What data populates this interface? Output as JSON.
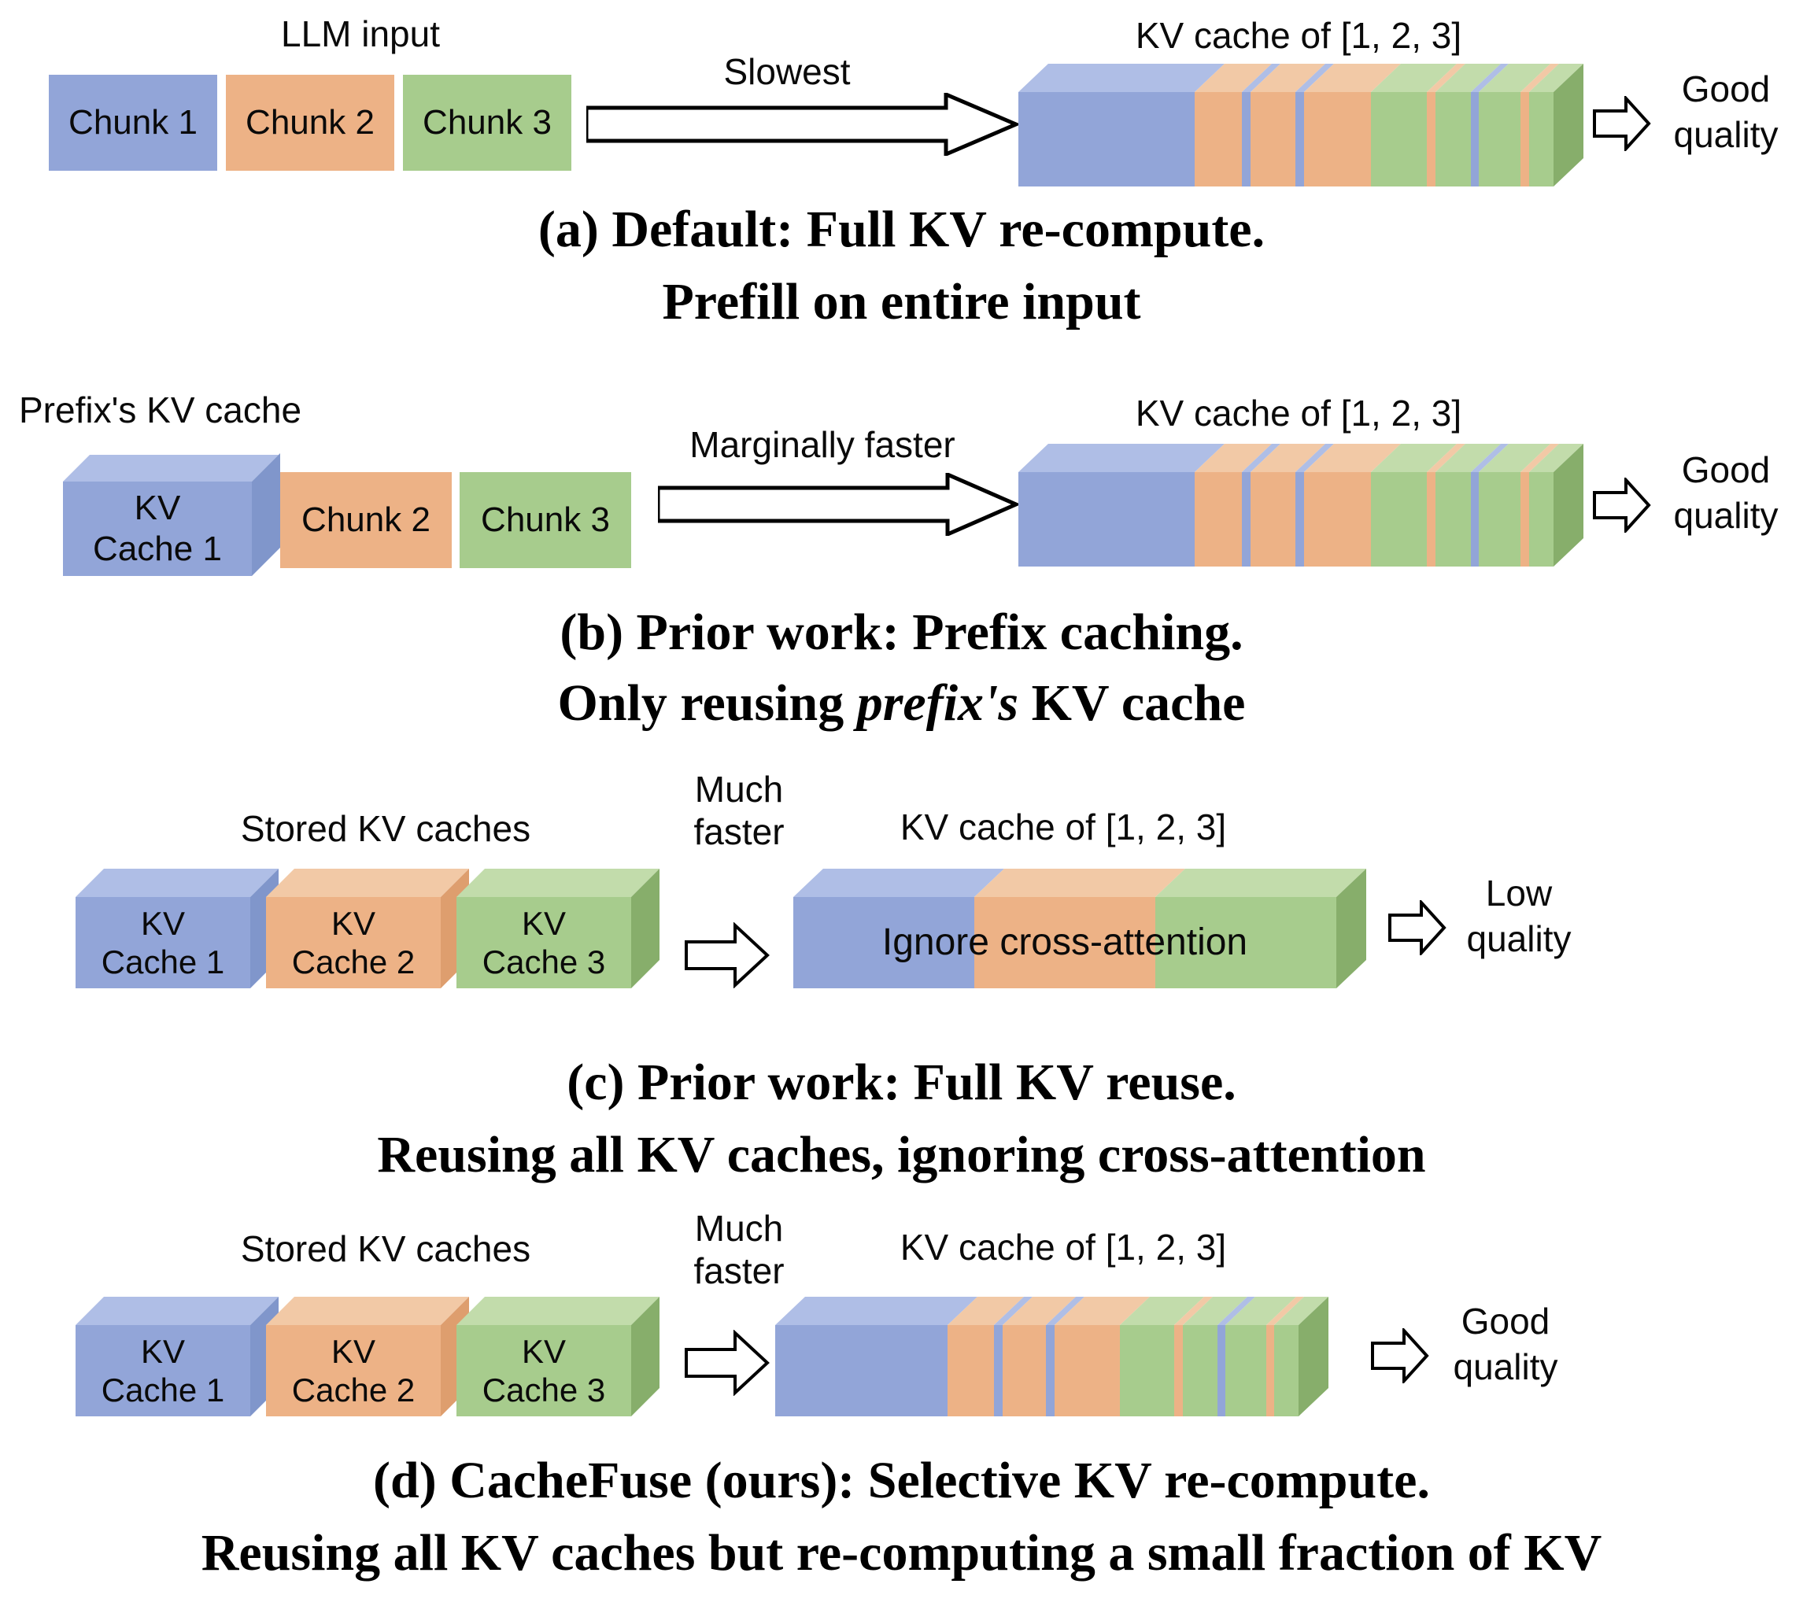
{
  "colors": {
    "blue": "#92A5D8",
    "blue_top": "#AFBEE6",
    "blue_side": "#8096CB",
    "orange": "#EDB286",
    "orange_top": "#F2C9A6",
    "orange_side": "#DE9E6E",
    "green": "#A7CC8D",
    "green_top": "#C2DCAB",
    "green_side": "#87AE6B"
  },
  "sec_a": {
    "top_label": "LLM input",
    "chunks": [
      {
        "label": "Chunk 1",
        "color": "blue"
      },
      {
        "label": "Chunk 2",
        "color": "orange"
      },
      {
        "label": "Chunk 3",
        "color": "green"
      }
    ],
    "arrow_label": "Slowest",
    "bar_label": "KV cache of [1, 2, 3]",
    "bar_segments": [
      {
        "color": "blue",
        "w": 33.0
      },
      {
        "color": "orange",
        "w": 8.8
      },
      {
        "color": "blue",
        "w": 1.6
      },
      {
        "color": "orange",
        "w": 8.4
      },
      {
        "color": "blue",
        "w": 1.6
      },
      {
        "color": "orange",
        "w": 12.5
      },
      {
        "color": "green",
        "w": 10.4
      },
      {
        "color": "orange",
        "w": 1.6
      },
      {
        "color": "green",
        "w": 6.6
      },
      {
        "color": "blue",
        "w": 1.6
      },
      {
        "color": "green",
        "w": 7.7
      },
      {
        "color": "orange",
        "w": 1.6
      },
      {
        "color": "green",
        "w": 4.6
      }
    ],
    "quality": [
      "Good",
      "quality"
    ],
    "caption": [
      "(a) Default: Full KV re-compute.",
      "Prefill on entire input"
    ]
  },
  "sec_b": {
    "top_label": "Prefix's KV cache",
    "cube": {
      "line1": "KV",
      "line2": "Cache 1",
      "color": "blue"
    },
    "chunks": [
      {
        "label": "Chunk 2",
        "color": "orange"
      },
      {
        "label": "Chunk 3",
        "color": "green"
      }
    ],
    "arrow_label": "Marginally faster",
    "bar_label": "KV cache of [1, 2, 3]",
    "bar_segments": [
      {
        "color": "blue",
        "w": 33.0
      },
      {
        "color": "orange",
        "w": 8.8
      },
      {
        "color": "blue",
        "w": 1.6
      },
      {
        "color": "orange",
        "w": 8.4
      },
      {
        "color": "blue",
        "w": 1.6
      },
      {
        "color": "orange",
        "w": 12.5
      },
      {
        "color": "green",
        "w": 10.4
      },
      {
        "color": "orange",
        "w": 1.6
      },
      {
        "color": "green",
        "w": 6.6
      },
      {
        "color": "blue",
        "w": 1.6
      },
      {
        "color": "green",
        "w": 7.7
      },
      {
        "color": "orange",
        "w": 1.6
      },
      {
        "color": "green",
        "w": 4.6
      }
    ],
    "quality": [
      "Good",
      "quality"
    ],
    "caption1": "(b) Prior work: Prefix caching.",
    "caption2_pre": "Only reusing ",
    "caption2_italic": "prefix's",
    "caption2_post": " KV cache"
  },
  "sec_c": {
    "top_label": "Stored KV caches",
    "cubes": [
      {
        "line1": "KV",
        "line2": "Cache 1",
        "color": "blue"
      },
      {
        "line1": "KV",
        "line2": "Cache 2",
        "color": "orange"
      },
      {
        "line1": "KV",
        "line2": "Cache 3",
        "color": "green"
      }
    ],
    "arrow_label_line1": "Much",
    "arrow_label_line2": "faster",
    "bar_label": "KV cache of [1, 2, 3]",
    "bar_text": "Ignore cross-attention",
    "bar_segments": [
      {
        "color": "blue",
        "w": 33.4
      },
      {
        "color": "orange",
        "w": 33.3
      },
      {
        "color": "green",
        "w": 33.3
      }
    ],
    "quality": [
      "Low",
      "quality"
    ],
    "caption": [
      "(c) Prior work: Full KV reuse.",
      "Reusing all KV caches, ignoring cross-attention"
    ]
  },
  "sec_d": {
    "top_label": "Stored KV caches",
    "cubes": [
      {
        "line1": "KV",
        "line2": "Cache 1",
        "color": "blue"
      },
      {
        "line1": "KV",
        "line2": "Cache 2",
        "color": "orange"
      },
      {
        "line1": "KV",
        "line2": "Cache 3",
        "color": "green"
      }
    ],
    "arrow_label_line1": "Much",
    "arrow_label_line2": "faster",
    "bar_label": "KV cache of [1, 2, 3]",
    "bar_segments": [
      {
        "color": "blue",
        "w": 33.0
      },
      {
        "color": "orange",
        "w": 8.8
      },
      {
        "color": "blue",
        "w": 1.6
      },
      {
        "color": "orange",
        "w": 8.4
      },
      {
        "color": "blue",
        "w": 1.6
      },
      {
        "color": "orange",
        "w": 12.5
      },
      {
        "color": "green",
        "w": 10.4
      },
      {
        "color": "orange",
        "w": 1.6
      },
      {
        "color": "green",
        "w": 6.6
      },
      {
        "color": "blue",
        "w": 1.6
      },
      {
        "color": "green",
        "w": 7.7
      },
      {
        "color": "orange",
        "w": 1.6
      },
      {
        "color": "green",
        "w": 4.6
      }
    ],
    "quality": [
      "Good",
      "quality"
    ],
    "caption": [
      "(d) CacheFuse (ours): Selective KV re-compute.",
      "Reusing all KV caches but re-computing a small fraction of KV"
    ]
  }
}
